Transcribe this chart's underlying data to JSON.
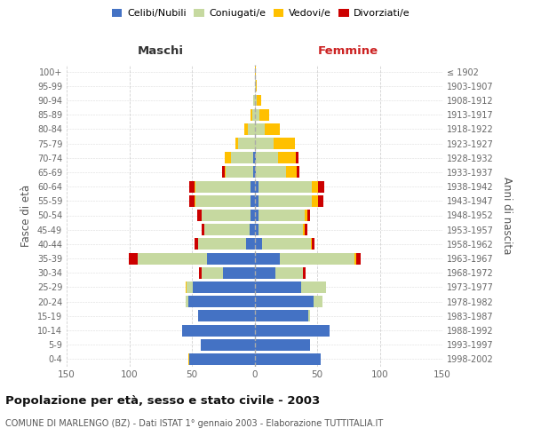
{
  "age_groups": [
    "0-4",
    "5-9",
    "10-14",
    "15-19",
    "20-24",
    "25-29",
    "30-34",
    "35-39",
    "40-44",
    "45-49",
    "50-54",
    "55-59",
    "60-64",
    "65-69",
    "70-74",
    "75-79",
    "80-84",
    "85-89",
    "90-94",
    "95-99",
    "100+"
  ],
  "birth_years": [
    "1998-2002",
    "1993-1997",
    "1988-1992",
    "1983-1987",
    "1978-1982",
    "1973-1977",
    "1968-1972",
    "1963-1967",
    "1958-1962",
    "1953-1957",
    "1948-1952",
    "1943-1947",
    "1938-1942",
    "1933-1937",
    "1928-1932",
    "1923-1927",
    "1918-1922",
    "1913-1917",
    "1908-1912",
    "1903-1907",
    "≤ 1902"
  ],
  "male_celibe": [
    52,
    43,
    58,
    45,
    53,
    49,
    25,
    38,
    7,
    4,
    3,
    3,
    3,
    1,
    1,
    0,
    0,
    0,
    0,
    0,
    0
  ],
  "male_coniugato": [
    0,
    0,
    0,
    0,
    2,
    5,
    17,
    55,
    38,
    36,
    39,
    44,
    44,
    22,
    18,
    13,
    5,
    2,
    1,
    0,
    0
  ],
  "male_vedovo": [
    1,
    0,
    0,
    0,
    0,
    1,
    0,
    0,
    0,
    0,
    0,
    1,
    1,
    1,
    5,
    2,
    3,
    1,
    0,
    0,
    0
  ],
  "male_divorziato": [
    0,
    0,
    0,
    0,
    0,
    0,
    2,
    7,
    3,
    2,
    4,
    4,
    4,
    2,
    0,
    0,
    0,
    0,
    0,
    0,
    0
  ],
  "female_nubile": [
    53,
    44,
    60,
    43,
    47,
    37,
    17,
    20,
    6,
    3,
    3,
    3,
    3,
    1,
    1,
    0,
    0,
    0,
    0,
    0,
    0
  ],
  "female_coniugata": [
    0,
    0,
    0,
    1,
    7,
    20,
    22,
    60,
    39,
    36,
    37,
    43,
    43,
    24,
    18,
    15,
    8,
    4,
    2,
    1,
    0
  ],
  "female_vedova": [
    0,
    0,
    0,
    0,
    0,
    0,
    0,
    1,
    1,
    1,
    2,
    5,
    5,
    9,
    14,
    17,
    12,
    8,
    3,
    1,
    1
  ],
  "female_divorziata": [
    0,
    0,
    0,
    0,
    0,
    0,
    2,
    4,
    2,
    2,
    2,
    4,
    5,
    2,
    2,
    0,
    0,
    0,
    0,
    0,
    0
  ],
  "color_celibe": "#4472c4",
  "color_coniugato": "#c6d9a0",
  "color_vedovo": "#ffc000",
  "color_divorziato": "#cc0000",
  "xlim": 150,
  "title": "Popolazione per età, sesso e stato civile - 2003",
  "subtitle": "COMUNE DI MARLENGO (BZ) - Dati ISTAT 1° gennaio 2003 - Elaborazione TUTTITALIA.IT",
  "ylabel_left": "Fasce di età",
  "ylabel_right": "Anni di nascita",
  "xlabel_left": "Maschi",
  "xlabel_right": "Femmine",
  "bg_color": "#ffffff",
  "grid_color": "#cccccc"
}
